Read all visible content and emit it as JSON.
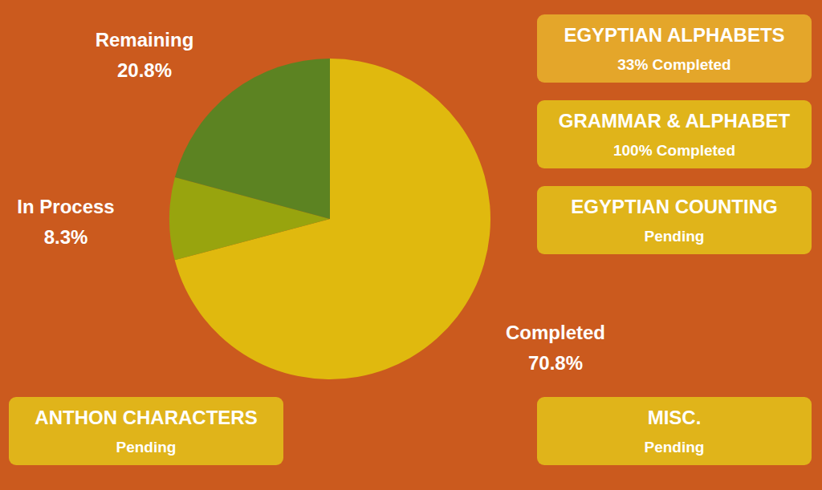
{
  "chart_data": {
    "type": "pie",
    "categories": [
      "Completed",
      "In Process",
      "Remaining"
    ],
    "values": [
      70.8,
      8.3,
      20.8
    ],
    "value_labels": [
      "70.8%",
      "8.3%",
      "20.8%"
    ],
    "colors": [
      "#e0b90e",
      "#98a40e",
      "#5c8322"
    ],
    "data_labels": true
  },
  "status_boxes": [
    {
      "title": "EGYPTIAN ALPHABETS",
      "status": "33% Completed"
    },
    {
      "title": "GRAMMAR & ALPHABET",
      "status": "100% Completed"
    },
    {
      "title": "EGYPTIAN COUNTING",
      "status": "Pending"
    },
    {
      "title": "MISC.",
      "status": "Pending"
    },
    {
      "title": "ANTHON CHARACTERS",
      "status": "Pending"
    }
  ]
}
